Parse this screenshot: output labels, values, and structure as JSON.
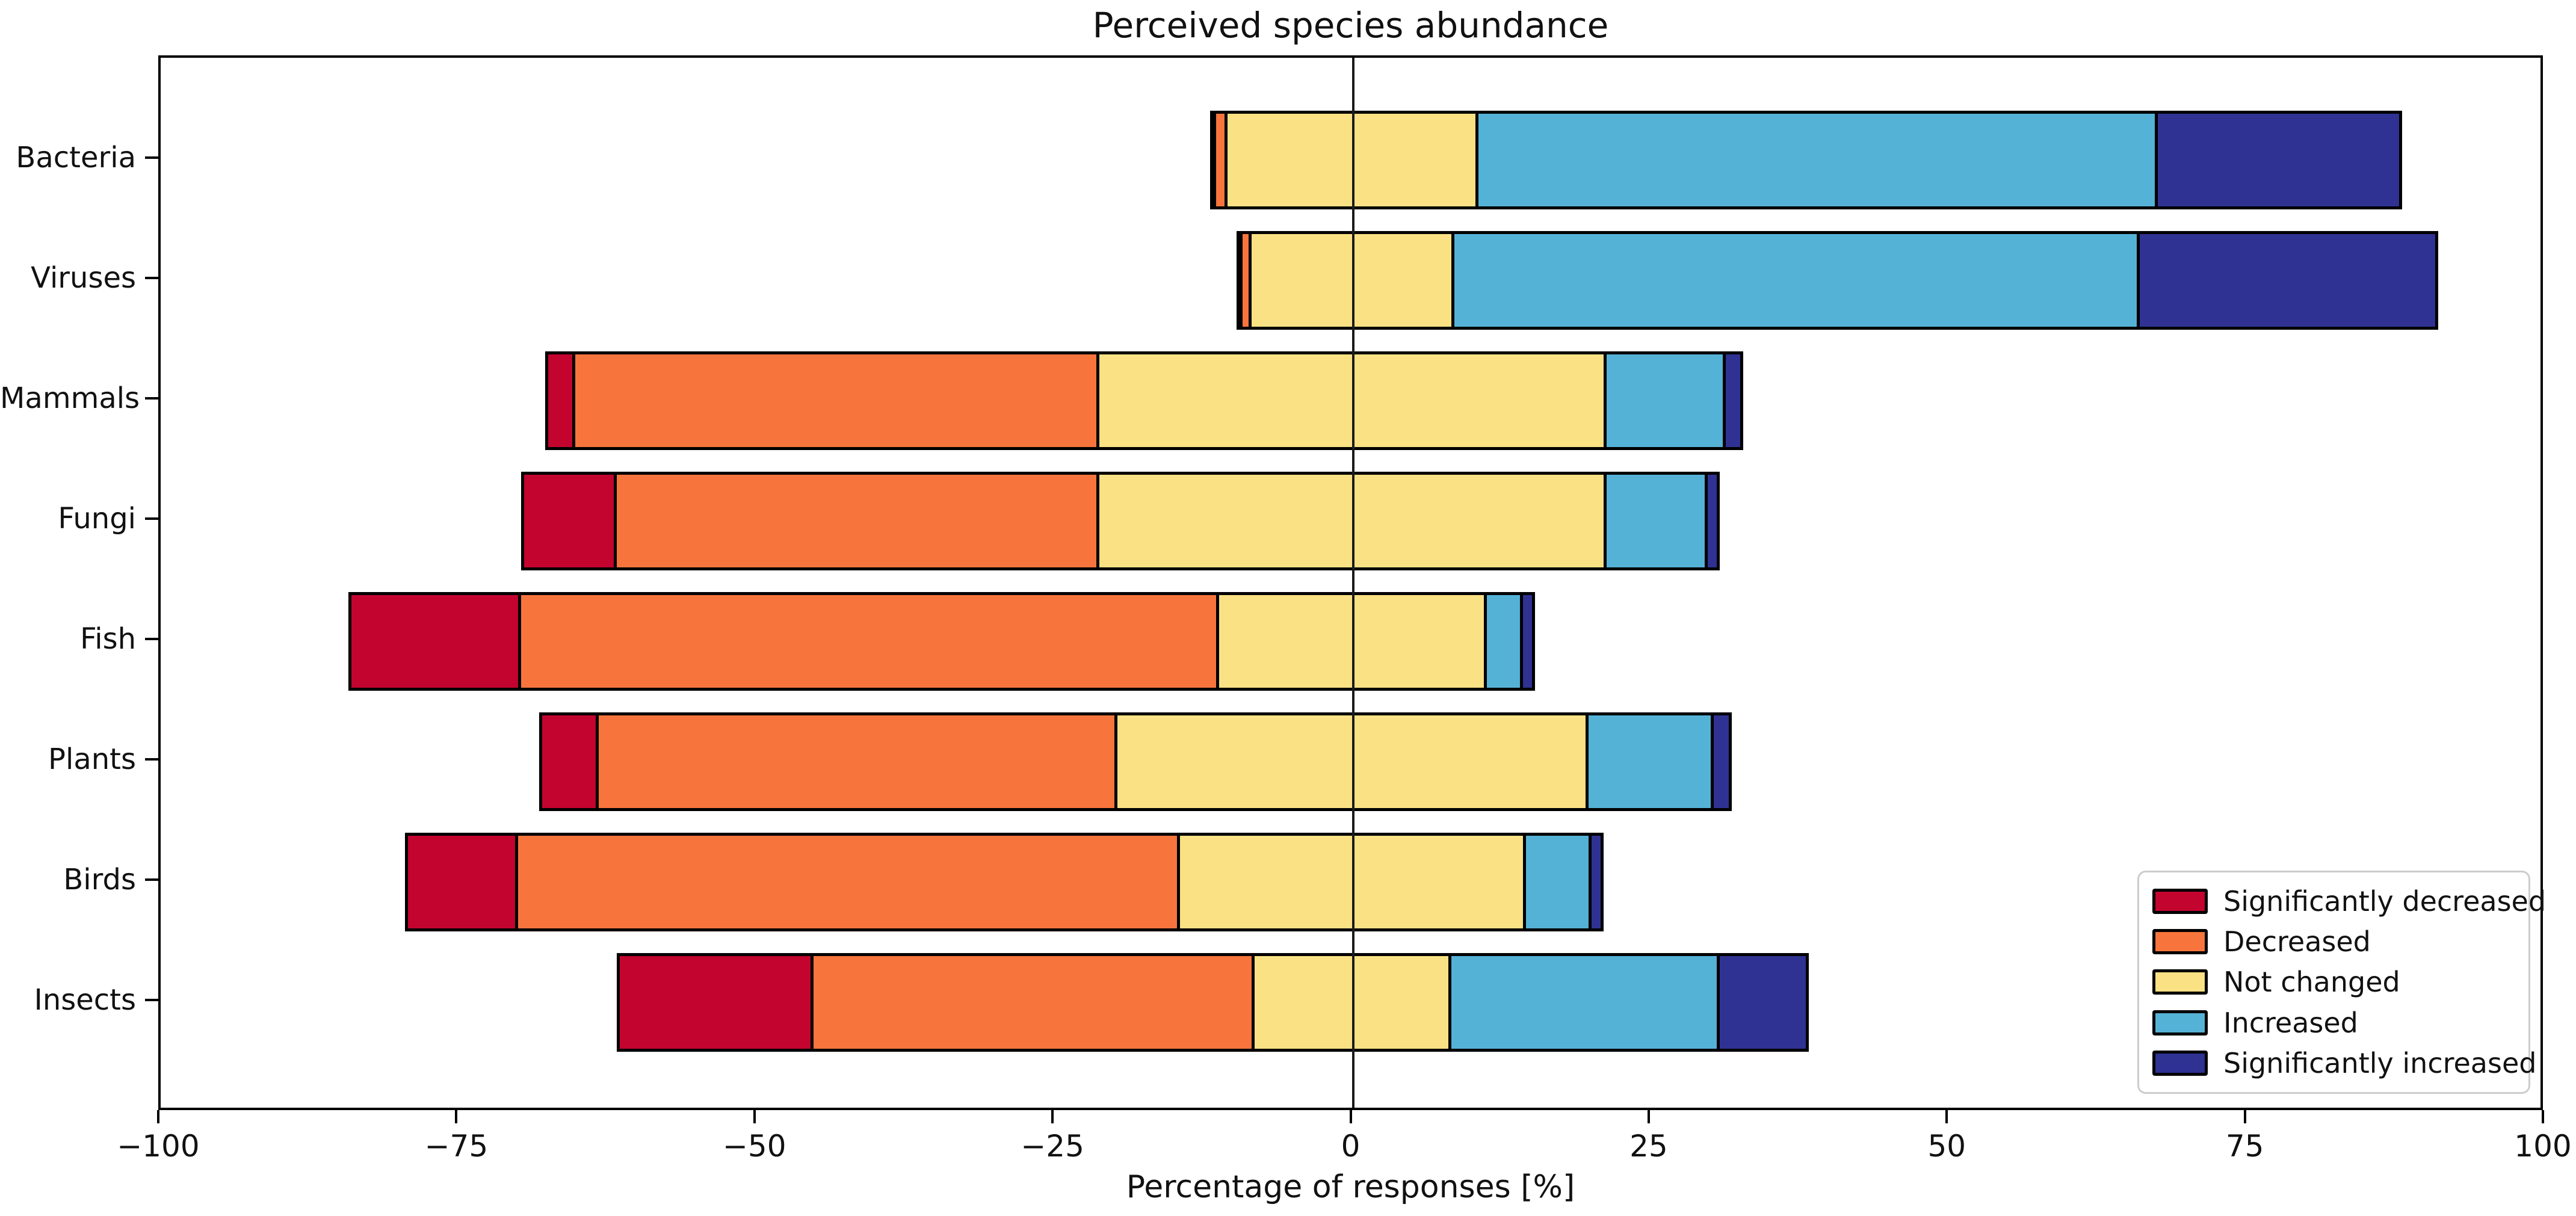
{
  "chart_data": {
    "type": "bar",
    "variant": "horizontal-diverging-stacked",
    "title": "Perceived species abundance",
    "xlabel": "Percentage of responses [%]",
    "ylabel": "",
    "xlim": [
      -100,
      100
    ],
    "x_ticks": [
      -100,
      -75,
      -50,
      -25,
      0,
      25,
      50,
      75,
      100
    ],
    "grid": false,
    "zero_reference_line": true,
    "centering_rule": "The 'Not changed' segment is split half left / half right of zero; decreases stack to the negative side, increases to the positive side",
    "legend_position": "lower right",
    "categories": [
      "Bacteria",
      "Viruses",
      "Mammals",
      "Fungi",
      "Fish",
      "Plants",
      "Birds",
      "Insects"
    ],
    "series": [
      {
        "name": "Significantly decreased",
        "color": "#c3042f",
        "values": [
          0.5,
          0.5,
          2.5,
          8,
          14.5,
          5,
          9.5,
          16.5
        ]
      },
      {
        "name": "Decreased",
        "color": "#f7753c",
        "values": [
          1,
          0.75,
          44,
          40.5,
          58.5,
          43.5,
          55.5,
          37
        ]
      },
      {
        "name": "Not changed",
        "color": "#fae184",
        "values": [
          21,
          17,
          42.5,
          42.5,
          22.5,
          39.5,
          29,
          16.5
        ]
      },
      {
        "name": "Increased",
        "color": "#55b2d7",
        "values": [
          57,
          57.5,
          10,
          8.5,
          3,
          10.5,
          5.5,
          22.5
        ]
      },
      {
        "name": "Significantly increased",
        "color": "#2f3292",
        "values": [
          20.5,
          25,
          1.5,
          1,
          1,
          1.5,
          1,
          7.5
        ]
      }
    ],
    "bar_edge_color": "#000000",
    "axis_color": "#000000",
    "text_color": "#111111"
  }
}
